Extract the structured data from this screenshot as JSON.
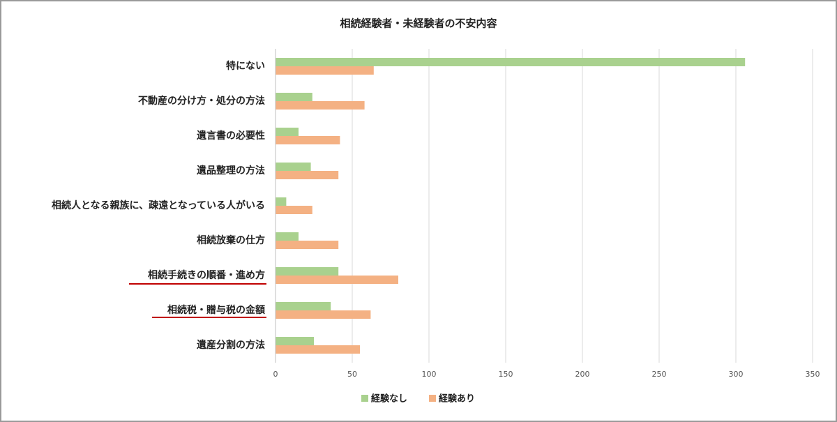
{
  "chart_data": {
    "type": "bar",
    "orientation": "horizontal",
    "title": "相続経験者・未経験者の不安内容",
    "categories": [
      "特にない",
      "不動産の分け方・処分の方法",
      "遺言書の必要性",
      "遺品整理の方法",
      "相続人となる親族に、疎遠となっている人がいる",
      "相続放棄の仕方",
      "相続手続きの順番・進め方",
      "相続税・贈与税の金額",
      "遺産分割の方法"
    ],
    "series": [
      {
        "name": "経験なし",
        "color": "#a9d18e",
        "values": [
          306,
          24,
          15,
          23,
          7,
          15,
          41,
          36,
          25
        ]
      },
      {
        "name": "経験あり",
        "color": "#f4b183",
        "values": [
          64,
          58,
          42,
          41,
          24,
          41,
          80,
          62,
          55
        ]
      }
    ],
    "xlim": [
      0,
      350
    ],
    "xticks": [
      0,
      50,
      100,
      150,
      200,
      250,
      300,
      350
    ],
    "grid": true,
    "legend": "bottom"
  }
}
